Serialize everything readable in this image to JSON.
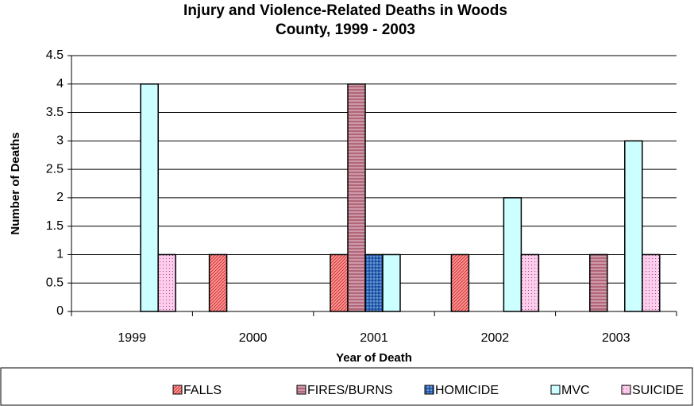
{
  "chart_data": {
    "type": "bar",
    "title": "Injury and Violence-Related Deaths in Woods County, 1999 - 2003",
    "x_label": "Year of Death",
    "y_label": "Number of Deaths",
    "categories": [
      "1999",
      "2000",
      "2001",
      "2002",
      "2003"
    ],
    "series": [
      {
        "name": "FALLS",
        "color": "#ff9999",
        "values": [
          0,
          1,
          1,
          1,
          0
        ]
      },
      {
        "name": "FIRES/BURNS",
        "color": "#cc99aa",
        "values": [
          0,
          0,
          4,
          0,
          1
        ]
      },
      {
        "name": "HOMICIDE",
        "color": "#6699cc",
        "values": [
          0,
          0,
          1,
          0,
          0
        ]
      },
      {
        "name": "MVC",
        "color": "#ccffff",
        "values": [
          4,
          0,
          1,
          2,
          3
        ]
      },
      {
        "name": "SUICIDE",
        "color": "#ffccee",
        "values": [
          1,
          0,
          0,
          1,
          1
        ]
      }
    ],
    "ylim": [
      0,
      4.5
    ],
    "yticks": [
      0,
      0.5,
      1,
      1.5,
      2,
      2.5,
      3,
      3.5,
      4,
      4.5
    ],
    "grid": true,
    "legend": "bottom"
  }
}
